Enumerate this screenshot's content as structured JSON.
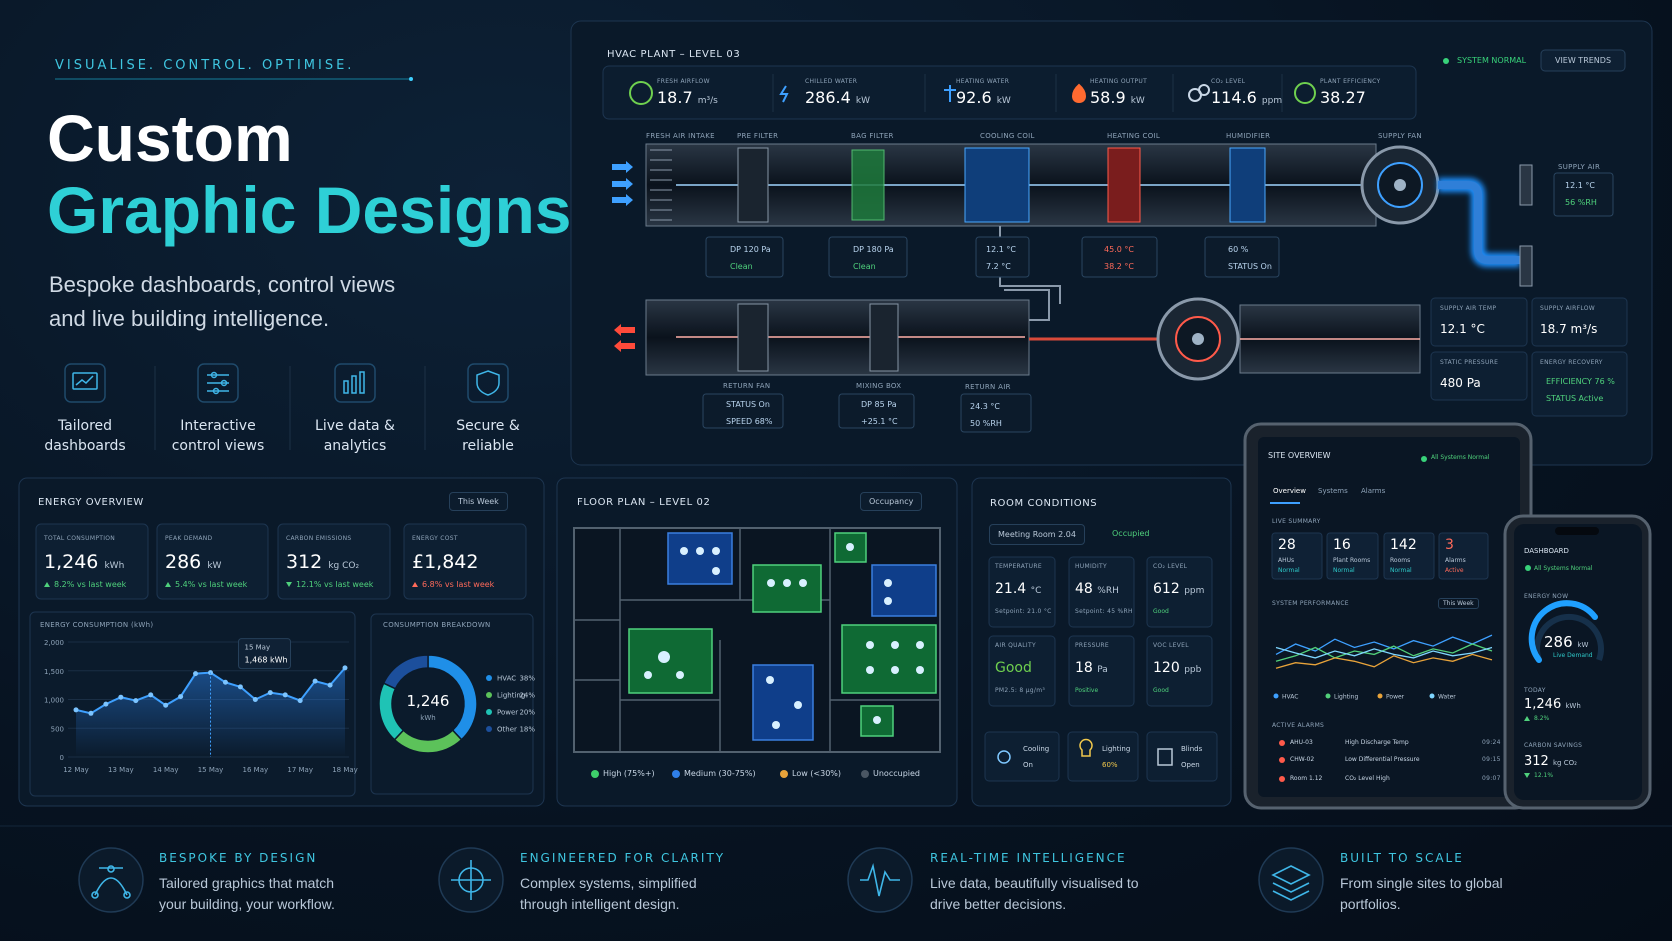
{
  "hero": {
    "tagline": "VISUALISE. CONTROL. OPTIMISE.",
    "title_line1": "Custom",
    "title_line2": "Graphic Designs",
    "subtitle": "Bespoke dashboards, control views and live building intelligence.",
    "features": [
      "Tailored dashboards",
      "Interactive control views",
      "Live data & analytics",
      "Secure & reliable"
    ]
  },
  "hvac": {
    "title": "HVAC PLANT – LEVEL 03",
    "status": "SYSTEM NORMAL",
    "button": "VIEW TRENDS",
    "metrics": [
      {
        "label": "FRESH AIRFLOW",
        "value": "18.7",
        "unit": "m³/s"
      },
      {
        "label": "CHILLED WATER",
        "value": "286.4",
        "unit": "kW"
      },
      {
        "label": "HEATING WATER",
        "value": "92.6",
        "unit": "kW"
      },
      {
        "label": "HEATING OUTPUT",
        "value": "58.9",
        "unit": "kW"
      },
      {
        "label": "CO₂ LEVEL",
        "value": "114.6",
        "unit": "ppm"
      },
      {
        "label": "PLANT EFFICIENCY",
        "value": "38.27",
        "unit": null
      }
    ],
    "components": [
      "FRESH AIR INTAKE",
      "PRE FILTER",
      "BAG FILTER",
      "COOLING COIL",
      "HEATING COIL",
      "HUMIDIFIER",
      "SUPPLY FAN",
      "RETURN FAN",
      "MIXING BOX",
      "RETURN AIR",
      "SUPPLY AIR"
    ],
    "readouts": [
      [
        "DP 120 Pa",
        "Clean"
      ],
      [
        "DP 180 Pa",
        "Clean"
      ],
      [
        "12.1 °C",
        "7.2 °C"
      ],
      [
        "45.0 °C",
        "38.2 °C"
      ],
      [
        "60 %",
        "STATUS On"
      ],
      [
        "STATUS On",
        "SPEED 68%"
      ],
      [
        "DP 85 Pa",
        "+25.1 °C"
      ],
      [
        "24.3 °C",
        "50 %RH"
      ],
      [
        "12.1 °C",
        "56 %RH"
      ]
    ],
    "panels": [
      {
        "label": "SUPPLY AIR TEMP",
        "value": "12.1 °C"
      },
      {
        "label": "SUPPLY AIRFLOW",
        "value": "18.7 m³/s"
      },
      {
        "label": "STATIC PRESSURE",
        "value": "480 Pa"
      },
      {
        "label": "ENERGY RECOVERY",
        "lines": [
          "EFFICIENCY 76 %",
          "STATUS Active"
        ]
      }
    ]
  },
  "energy": {
    "title": "ENERGY OVERVIEW",
    "period": "This Week",
    "kpis": [
      {
        "label": "TOTAL CONSUMPTION",
        "value": "1,246",
        "unit": "kWh",
        "delta": "8.2% vs last week"
      },
      {
        "label": "PEAK DEMAND",
        "value": "286",
        "unit": "kW",
        "delta": "5.4% vs last week"
      },
      {
        "label": "CARBON EMISSIONS",
        "value": "312",
        "unit": "kg CO₂",
        "delta": "12.1% vs last week"
      },
      {
        "label": "ENERGY COST",
        "value": "£1,842",
        "unit": null,
        "delta": "6.8% vs last week"
      }
    ]
  },
  "chart_data": [
    {
      "type": "line",
      "title": "ENERGY CONSUMPTION (kWh)",
      "categories": [
        "12 May",
        null,
        null,
        "13 May",
        null,
        null,
        "14 May",
        null,
        null,
        "15 May",
        null,
        null,
        "16 May",
        null,
        null,
        "17 May",
        null,
        null,
        "18 May"
      ],
      "values": [
        820,
        760,
        920,
        1040,
        980,
        1080,
        900,
        1050,
        1450,
        1468,
        1300,
        1220,
        1000,
        1120,
        1080,
        980,
        1320,
        1250,
        1550
      ],
      "color": "#3ea0ff",
      "ylim": [
        0,
        2000
      ],
      "yticks": [
        0,
        500,
        {
          "value": 1000,
          "label": "1,000"
        },
        {
          "value": 1500,
          "label": "1,500"
        },
        {
          "value": 2000,
          "label": "2,000"
        }
      ],
      "annotation": {
        "title": "15 May",
        "label": "1,468 kWh"
      }
    },
    {
      "type": "pie",
      "title": "CONSUMPTION BREAKDOWN",
      "categories": [
        "HVAC",
        "Lighting",
        "Power",
        "Other"
      ],
      "values": [
        38,
        24,
        20,
        18
      ],
      "value_labels": [
        "38%",
        "24%",
        "20%",
        "18%"
      ],
      "colors": [
        "#1f8fe8",
        "#5cc25a",
        "#1fc3b5",
        "#1c4f9c"
      ],
      "center_label": "1,246",
      "center_unit": "kWh"
    },
    {
      "type": "line",
      "title": "SYSTEM PERFORMANCE",
      "period": "This Week",
      "categories": [
        null,
        null,
        null,
        null,
        null,
        null,
        null,
        null,
        null,
        null,
        null,
        null
      ],
      "ylim": [
        0,
        100
      ],
      "series": [
        {
          "name": "HVAC",
          "color": "#3ea0ff",
          "values": [
            40,
            55,
            45,
            62,
            50,
            58,
            48,
            60,
            52,
            65,
            55,
            68
          ]
        },
        {
          "name": "Lighting",
          "color": "#52d07a",
          "values": [
            30,
            38,
            50,
            35,
            45,
            40,
            52,
            38,
            48,
            42,
            55,
            45
          ]
        },
        {
          "name": "Power",
          "color": "#e8a33a",
          "values": [
            20,
            28,
            25,
            35,
            30,
            22,
            38,
            28,
            35,
            30,
            40,
            32
          ]
        },
        {
          "name": "Water",
          "color": "#7fd6ff",
          "values": [
            50,
            42,
            35,
            45,
            38,
            48,
            40,
            35,
            45,
            38,
            42,
            50
          ]
        }
      ]
    }
  ],
  "floor_plan": {
    "title": "FLOOR PLAN – LEVEL 02",
    "mode": "Occupancy",
    "legend": [
      "High (75%+)",
      "Medium (30-75%)",
      "Low (<30%)",
      "Unoccupied"
    ]
  },
  "room": {
    "title": "ROOM CONDITIONS",
    "room": "Meeting Room 2.04",
    "status": "Occupied",
    "tiles": [
      {
        "label": "TEMPERATURE",
        "value": "21.4",
        "unit": "°C",
        "note": "Setpoint: 21.0 °C"
      },
      {
        "label": "HUMIDITY",
        "value": "48",
        "unit": "%RH",
        "note": "Setpoint: 45 %RH"
      },
      {
        "label": "CO₂ LEVEL",
        "value": "612",
        "unit": "ppm",
        "note": "Good"
      },
      {
        "label": "AIR QUALITY",
        "value": "Good",
        "unit": null,
        "note": "PM2.5: 8 µg/m³"
      },
      {
        "label": "PRESSURE",
        "value": "18",
        "unit": "Pa",
        "note": "Positive"
      },
      {
        "label": "VOC LEVEL",
        "value": "120",
        "unit": "ppb",
        "note": "Good"
      }
    ],
    "controls": [
      {
        "label": "Cooling",
        "state": "On"
      },
      {
        "label": "Lighting",
        "state": "60%"
      },
      {
        "label": "Blinds",
        "state": "Open"
      }
    ]
  },
  "tablet": {
    "title": "SITE OVERVIEW",
    "status": "All Systems Normal",
    "tabs": [
      "Overview",
      "Systems",
      "Alarms"
    ],
    "summary_title": "LIVE SUMMARY",
    "stats": [
      {
        "value": "28",
        "label": "AHUs",
        "state": "Normal"
      },
      {
        "value": "16",
        "label": "Plant Rooms",
        "state": "Normal"
      },
      {
        "value": "142",
        "label": "Rooms",
        "state": "Normal"
      },
      {
        "value": "3",
        "label": "Alarms",
        "state": "Active"
      }
    ],
    "alarms_title": "ACTIVE ALARMS",
    "alarms": [
      [
        "AHU-03",
        "High Discharge Temp",
        "09:24"
      ],
      [
        "CHW-02",
        "Low Differential Pressure",
        "09:15"
      ],
      [
        "Room 1.12",
        "CO₂ Level High",
        "09:07"
      ]
    ]
  },
  "phone": {
    "title": "DASHBOARD",
    "status": "All Systems Normal",
    "energy_title": "ENERGY NOW",
    "energy_value": "286",
    "energy_unit": "kW",
    "energy_note": "Live Demand",
    "today_title": "TODAY",
    "today_value": "1,246",
    "today_unit": "kWh",
    "today_delta": "8.2%",
    "carbon_title": "CARBON SAVINGS",
    "carbon_value": "312",
    "carbon_unit": "kg CO₂",
    "carbon_delta": "12.1%"
  },
  "footer": [
    {
      "title": "BESPOKE BY DESIGN",
      "text": "Tailored graphics that match your building, your workflow."
    },
    {
      "title": "ENGINEERED FOR CLARITY",
      "text": "Complex systems, simplified through intelligent design."
    },
    {
      "title": "REAL-TIME INTELLIGENCE",
      "text": "Live data, beautifully visualised to drive better decisions."
    },
    {
      "title": "BUILT TO SCALE",
      "text": "From single sites to global portfolios."
    }
  ]
}
